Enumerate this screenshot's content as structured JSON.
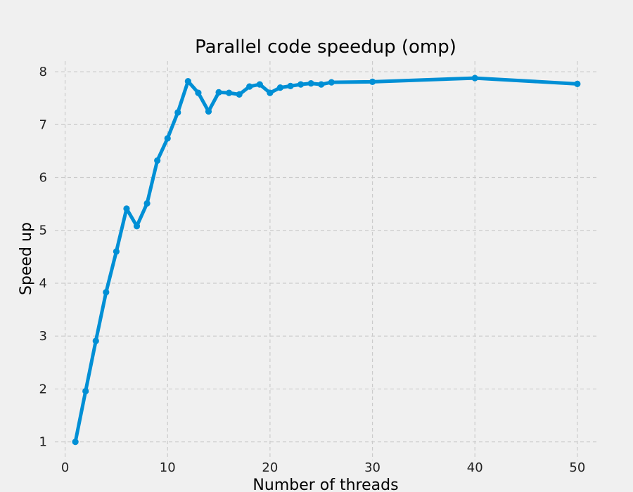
{
  "chart_data": {
    "type": "line",
    "title": "Parallel code speedup (omp)",
    "xlabel": "Number of threads",
    "ylabel": "Speed up",
    "xlim": [
      -1,
      52
    ],
    "ylim": [
      0.65,
      8.2
    ],
    "xticks": [
      0,
      10,
      20,
      30,
      40,
      50
    ],
    "yticks": [
      1,
      2,
      3,
      4,
      5,
      6,
      7,
      8
    ],
    "grid": true,
    "series": [
      {
        "color": "#008fd5",
        "marker": "circle",
        "x": [
          1,
          2,
          3,
          4,
          5,
          6,
          7,
          8,
          9,
          10,
          11,
          12,
          13,
          14,
          15,
          16,
          17,
          18,
          19,
          20,
          21,
          22,
          23,
          24,
          25,
          26,
          30,
          40,
          50
        ],
        "y": [
          1.0,
          1.96,
          2.91,
          3.83,
          4.6,
          5.41,
          5.08,
          5.51,
          6.32,
          6.74,
          7.23,
          7.82,
          7.6,
          7.25,
          7.61,
          7.6,
          7.57,
          7.72,
          7.76,
          7.6,
          7.7,
          7.73,
          7.76,
          7.78,
          7.76,
          7.8,
          7.81,
          7.88,
          7.77
        ]
      }
    ]
  }
}
